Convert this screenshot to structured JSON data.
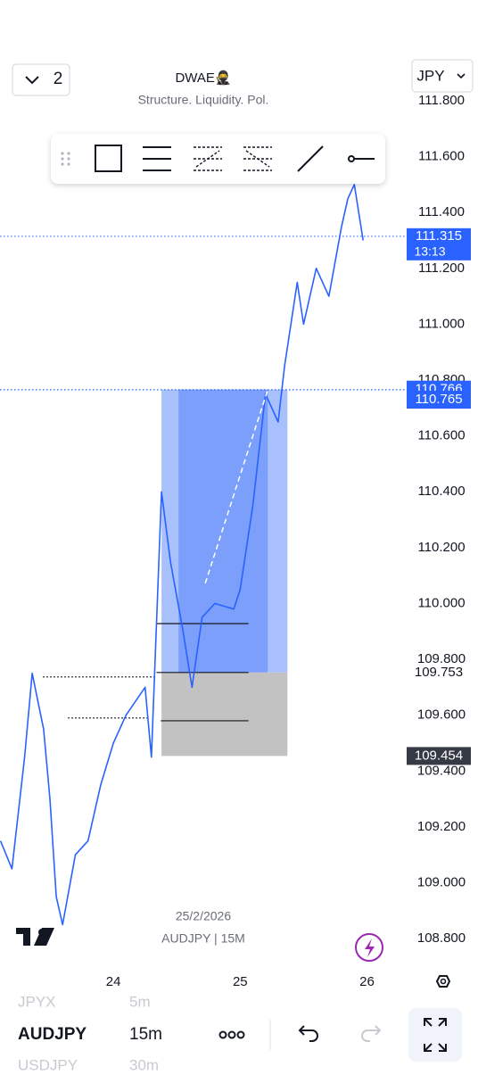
{
  "header": {
    "layout_count": "2",
    "title": "DWAE🥷",
    "subtitle": "Structure. Liquidity. Pol.",
    "currency": "JPY"
  },
  "chart_data": {
    "type": "line",
    "color": "#2962ff",
    "x": [
      23.11,
      23.2,
      23.3,
      23.36,
      23.45,
      23.5,
      23.55,
      23.6,
      23.7,
      23.8,
      23.9,
      24.0,
      24.1,
      24.25,
      24.3,
      24.38,
      24.45,
      24.55,
      24.62,
      24.7,
      24.8,
      24.95,
      25.0,
      25.1,
      25.2,
      25.3,
      25.35,
      25.45,
      25.5,
      25.6,
      25.7,
      25.8,
      25.85,
      25.9,
      25.97
    ],
    "values": [
      109.15,
      109.05,
      109.45,
      109.75,
      109.55,
      109.3,
      108.95,
      108.85,
      109.1,
      109.15,
      109.35,
      109.5,
      109.6,
      109.7,
      109.45,
      110.4,
      110.15,
      109.9,
      109.7,
      109.95,
      110.0,
      109.98,
      110.05,
      110.35,
      110.75,
      110.65,
      110.85,
      111.15,
      111.0,
      111.2,
      111.1,
      111.35,
      111.45,
      111.5,
      111.3
    ],
    "xlim": [
      23.106,
      26.06
    ],
    "ylim": [
      108.695,
      112.161
    ],
    "xticks": [
      24,
      25,
      26
    ],
    "yticks": [
      {
        "value": 111.8,
        "label": "111.800"
      },
      {
        "value": 111.6,
        "label": "111.600"
      },
      {
        "value": 111.4,
        "label": "111.400"
      },
      {
        "value": 111.2,
        "label": "111.200"
      },
      {
        "value": 111,
        "label": "111.000"
      },
      {
        "value": 110.8,
        "label": "110.800"
      },
      {
        "value": 110.6,
        "label": "110.600"
      },
      {
        "value": 110.4,
        "label": "110.400"
      },
      {
        "value": 110.2,
        "label": "110.200"
      },
      {
        "value": 110,
        "label": "110.000"
      },
      {
        "value": 109.8,
        "label": "109.800"
      },
      {
        "value": 109.6,
        "label": "109.600"
      },
      {
        "value": 109.4,
        "label": "109.400"
      },
      {
        "value": 109.2,
        "label": "109.200"
      },
      {
        "value": 109,
        "label": "109.000"
      },
      {
        "value": 108.8,
        "label": "108.800"
      }
    ],
    "price_tags": [
      {
        "value": 111.315,
        "countdown": "13:13",
        "color": "#2962ff"
      },
      {
        "value": 110.766,
        "color": "#2962ff"
      },
      {
        "value": 110.765,
        "color": "#2962ff"
      },
      {
        "value": 109.753,
        "color": "#ffffff"
      },
      {
        "value": 109.454,
        "color": "#363a45"
      }
    ],
    "position": {
      "entry": 109.753,
      "target": 110.766,
      "stop": 109.454,
      "start": 24.38,
      "end": 25.373,
      "fill_start": 24.514,
      "fill_end": 25.218
    },
    "levels": [
      {
        "value": 109.928,
        "from": 24.34,
        "to": 25.066,
        "style": "solid"
      },
      {
        "value": 109.753,
        "from": 24.34,
        "to": 25.066,
        "style": "solid"
      },
      {
        "value": 109.58,
        "from": 24.374,
        "to": 25.066,
        "style": "solid"
      },
      {
        "value": 109.737,
        "from": 23.444,
        "to": 24.338,
        "style": "dotted"
      },
      {
        "value": 109.59,
        "from": 23.641,
        "to": 24.268,
        "style": "dotted"
      }
    ],
    "watermark": {
      "date": "25/2/2026",
      "symbol": "AUDJPY | 15M"
    }
  },
  "bottom_bar": {
    "prev": [
      "JPYX",
      "5m"
    ],
    "current": [
      "AUDJPY",
      "15m"
    ],
    "next": [
      "USDJPY",
      "30m"
    ]
  }
}
